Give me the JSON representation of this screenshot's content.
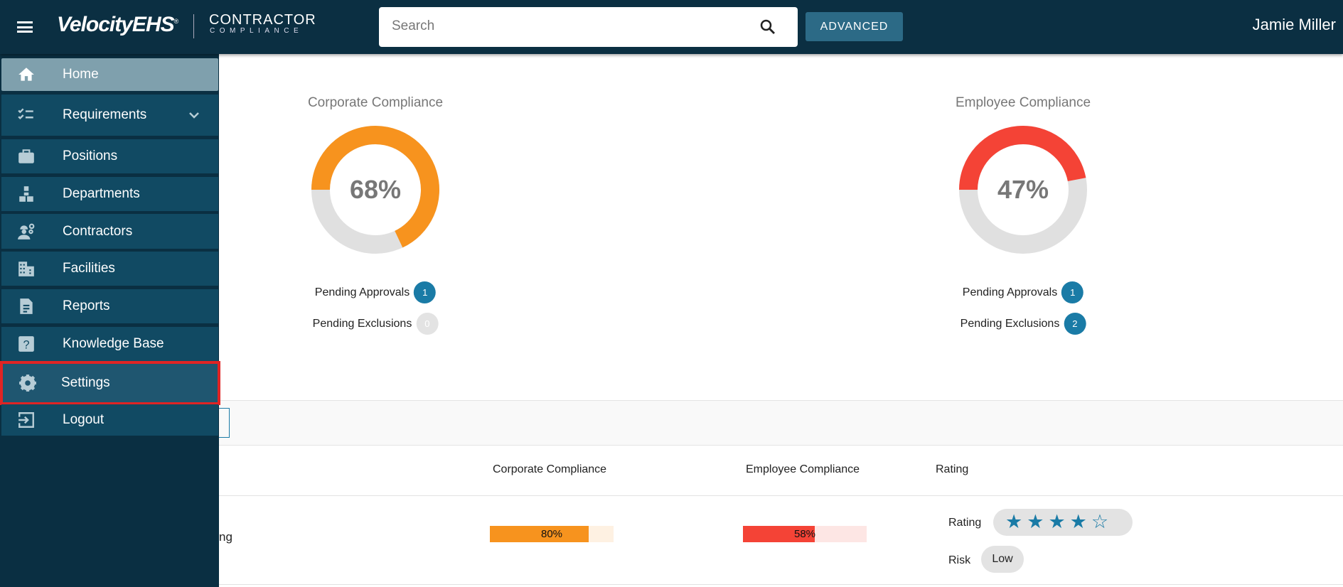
{
  "header": {
    "brand": "VelocityEHS",
    "brand_mark": "®",
    "product_line1": "CONTRACTOR",
    "product_line2": "COMPLIANCE",
    "search_placeholder": "Search",
    "advanced_label": "ADVANCED",
    "user_name": "Jamie Miller"
  },
  "sidebar": {
    "items": [
      {
        "label": "Home",
        "icon": "home-icon"
      },
      {
        "label": "Requirements",
        "icon": "checklist-icon"
      },
      {
        "label": "Positions",
        "icon": "briefcase-icon"
      },
      {
        "label": "Departments",
        "icon": "hierarchy-icon"
      },
      {
        "label": "Contractors",
        "icon": "worker-gear-icon"
      },
      {
        "label": "Facilities",
        "icon": "building-icon"
      },
      {
        "label": "Reports",
        "icon": "document-icon"
      },
      {
        "label": "Knowledge Base",
        "icon": "question-icon"
      },
      {
        "label": "Settings",
        "icon": "gear-icon"
      },
      {
        "label": "Logout",
        "icon": "logout-icon"
      }
    ]
  },
  "dashboard": {
    "corporate": {
      "title": "Corporate Compliance",
      "value": 68,
      "label": "68%",
      "color": "#F7931E",
      "pending_approvals_label": "Pending Approvals",
      "pending_approvals": "1",
      "pending_exclusions_label": "Pending Exclusions",
      "pending_exclusions": "0"
    },
    "employee": {
      "title": "Employee Compliance",
      "value": 47,
      "label": "47%",
      "color": "#F44336",
      "pending_approvals_label": "Pending Approvals",
      "pending_approvals": "1",
      "pending_exclusions_label": "Pending Exclusions",
      "pending_exclusions": "2"
    }
  },
  "table": {
    "headers": [
      "Corporate Compliance",
      "Employee Compliance",
      "Rating"
    ],
    "row": {
      "name_fragment": "ng",
      "corporate": 80,
      "corporate_label": "80%",
      "employee": 58,
      "employee_label": "58%",
      "rating_label": "Rating",
      "rating": 4,
      "rating_max": 5,
      "risk_label": "Risk",
      "risk": "Low"
    }
  }
}
